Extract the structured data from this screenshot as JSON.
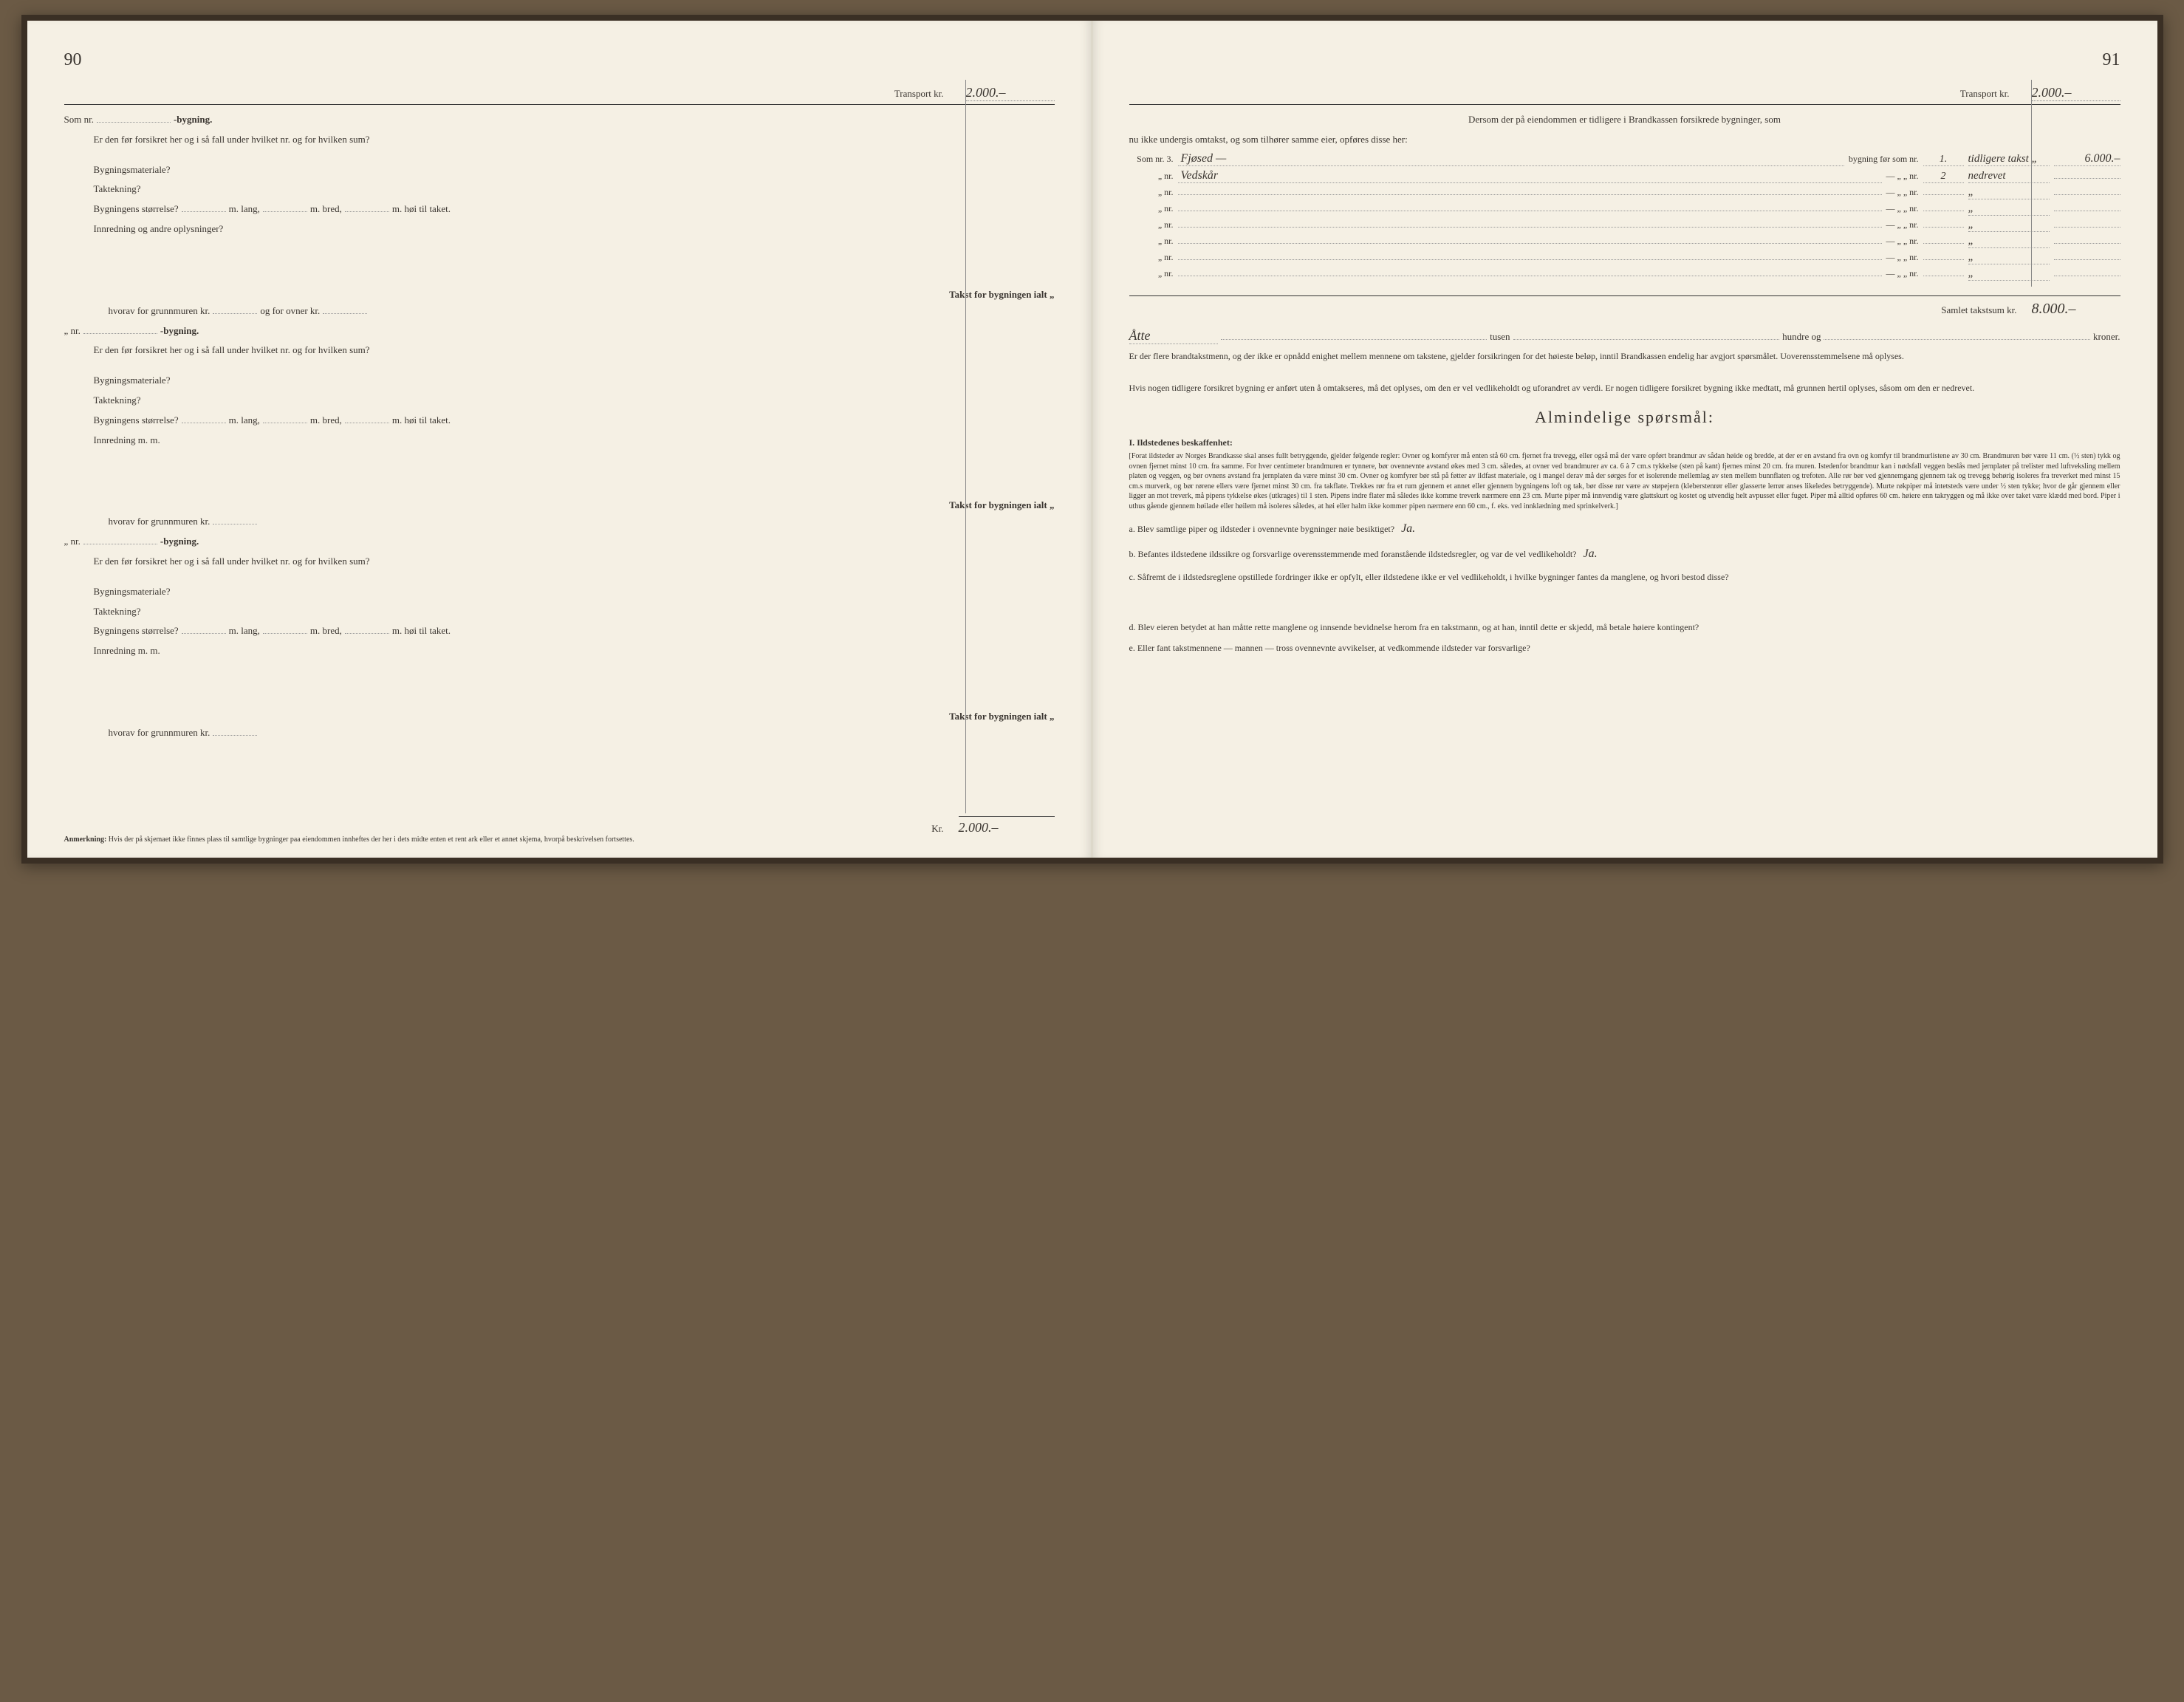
{
  "left": {
    "page_number": "90",
    "transport_label": "Transport kr.",
    "transport_value": "2.000.–",
    "som_nr": "Som nr.",
    "bygning_suffix": "-bygning.",
    "q_forsikret": "Er den før forsikret her og i så fall under hvilket nr. og for hvilken sum?",
    "materiale": "Bygningsmateriale?",
    "taktekning": "Taktekning?",
    "storrelse_pre": "Bygningens størrelse?",
    "m_lang": "m. lang,",
    "m_bred": "m. bred,",
    "m_hoi": "m. høi til taket.",
    "innredning_long": "Innredning og andre oplysninger?",
    "innredning_short": "Innredning m. m.",
    "takst_label": "Takst for bygningen ialt „",
    "hvorav": "hvorav for grunnmuren kr.",
    "og_ovner": "og for ovner kr.",
    "nr_prefix": "„ nr.",
    "sum_kr": "Kr.",
    "sum_value": "2.000.–",
    "footnote_label": "Anmerkning:",
    "footnote_text": "Hvis der på skjemaet ikke finnes plass til samtlige bygninger paa eiendommen innheftes der her i dets midte enten et rent ark eller et annet skjema, hvorpå beskrivelsen fortsettes."
  },
  "right": {
    "page_number": "91",
    "transport_label": "Transport kr.",
    "transport_value": "2.000.–",
    "intro1": "Dersom der på eiendommen er tidligere i Brandkassen forsikrede bygninger, som",
    "intro2": "nu ikke undergis omtakst, og som tilhører samme eier, opføres disse her:",
    "som_nr": "Som nr.",
    "nr_quote": "„  nr.",
    "mid_text_first": "bygning før som nr.",
    "mid_text_rest": "—       „     „    nr.",
    "tidl_takst_first": "tidligere takst „",
    "tidl_takst_rest": "„",
    "rows": [
      {
        "nr": "3.",
        "desc": "Fjøsed  —",
        "nr2": "1.",
        "takst2": "",
        "amt": "6.000.–"
      },
      {
        "nr": "",
        "desc": "Vedskår",
        "nr2": "2",
        "takst2": "nedrevet",
        "amt": ""
      },
      {
        "nr": "",
        "desc": "",
        "nr2": "",
        "takst2": "",
        "amt": ""
      },
      {
        "nr": "",
        "desc": "",
        "nr2": "",
        "takst2": "",
        "amt": ""
      },
      {
        "nr": "",
        "desc": "",
        "nr2": "",
        "takst2": "",
        "amt": ""
      },
      {
        "nr": "",
        "desc": "",
        "nr2": "",
        "takst2": "",
        "amt": ""
      },
      {
        "nr": "",
        "desc": "",
        "nr2": "",
        "takst2": "",
        "amt": ""
      },
      {
        "nr": "",
        "desc": "",
        "nr2": "",
        "takst2": "",
        "amt": ""
      }
    ],
    "samlet_label": "Samlet takstsum kr.",
    "samlet_value": "8.000.–",
    "tusen_word": "Åtte",
    "tusen": "tusen",
    "hundre": "hundre og",
    "kroner": "kroner.",
    "para_flere": "Er der flere brandtakstmenn, og der ikke er opnådd enighet mellem mennene om takstene, gjelder forsikringen for det høieste beløp, inntil Brandkassen endelig har avgjort spørsmålet.  Uoverensstemmelsene må oplyses.",
    "para_tidl": "Hvis nogen tidligere forsikret bygning er anført uten å omtakseres, må det oplyses, om den er vel vedlikeholdt og uforandret av verdi.  Er nogen tidligere forsikret bygning ikke medtatt, må grunnen hertil oplyses, såsom om den er nedrevet.",
    "heading": "Almindelige spørsmål:",
    "sec1_title": "I.  Ildstedenes beskaffenhet:",
    "fineprint": "[Forat ildsteder av Norges Brandkasse skal anses fullt betryggende, gjelder følgende regler: Ovner og komfyrer må enten stå 60 cm. fjernet fra trevegg, eller også må der være opført brandmur av sådan høide og bredde, at der er en avstand fra ovn og komfyr til brandmurlistene av 30 cm. Brandmuren bør være 11 cm. (½ sten) tykk og ovnen fjernet minst 10 cm. fra samme. For hver centimeter brandmuren er tynnere, bør ovennevnte avstand økes med 3 cm. således, at ovner ved brandmurer av ca. 6 à 7 cm.s tykkelse (sten på kant) fjernes minst 20 cm. fra muren. Istedenfor brandmur kan i nødsfall veggen beslås med jernplater på trelister med luftveksling mellem platen og veggen, og bør ovnens avstand fra jernplaten da være minst 30 cm. Ovner og komfyrer bør stå på føtter av ildfast materiale, og i mangel derav må der sørges for et isolerende mellemlag av sten mellem bunnflaten og trefoten. Alle rør bør ved gjennemgang gjennem tak og trevegg behørig isoleres fra treverket med minst 15 cm.s murverk, og bør rørene ellers være fjernet minst 30 cm. fra takflate. Trekkes rør fra et rum gjennem et annet eller gjennem bygningens loft og tak, bør disse rør være av støpejern (kleberstenrør eller glasserte lerrør anses likeledes betryggende). Murte røkpiper må intetsteds være under ½ sten tykke; hvor de går gjennem eller ligger an mot treverk, må pipens tykkelse økes (utkrages) til 1 sten. Pipens indre flater må således ikke komme treverk nærmere enn 23 cm. Murte piper må innvendig være glattskurt og kostet og utvendig helt avpusset eller fuget. Piper må alltid opføres 60 cm. høiere enn takryggen og må ikke over taket være klædd med bord. Piper i uthus gående gjennem høilade eller høilem må isoleres således, at høi eller halm ikke kommer pipen nærmere enn 60 cm., f. eks. ved innklædning med sprinkelverk.]",
    "qa_a": "a.  Blev samtlige piper og ildsteder i ovennevnte bygninger nøie besiktiget?",
    "qa_a_ans": "Ja.",
    "qa_b": "b.  Befantes ildstedene ildssikre og forsvarlige overensstemmende med foranstående ildstedsregler, og var de vel vedlikeholdt?",
    "qa_b_ans": "Ja.",
    "qa_c": "c.  Såfremt de i ildstedsreglene opstillede fordringer ikke er opfylt, eller ildstedene ikke er vel vedlikeholdt, i hvilke bygninger fantes da manglene, og hvori bestod disse?",
    "qa_d": "d.  Blev eieren betydet at han måtte rette manglene og innsende bevidnelse herom fra en takstmann, og at han, inntil dette er skjedd, må betale høiere kontingent?",
    "qa_e": "e.  Eller fant takstmennene — mannen — tross ovennevnte avvikelser, at vedkommende ildsteder var forsvarlige?"
  },
  "colors": {
    "paper": "#f5f0e4",
    "ink": "#3a3530",
    "binding": "#3a2f24",
    "desk": "#6b5a45"
  }
}
